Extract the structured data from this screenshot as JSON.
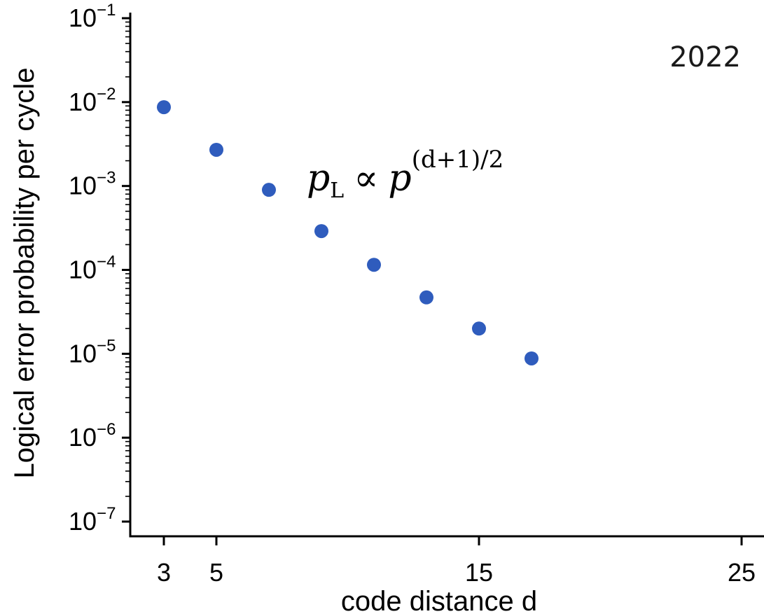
{
  "chart_data": {
    "type": "scatter",
    "title": "",
    "xlabel": "code distance d",
    "ylabel": "Logical error probability per cycle",
    "x_ticks": [
      "3",
      "5",
      "15",
      "25"
    ],
    "x_tick_values": [
      3,
      5,
      15,
      25
    ],
    "xlim": [
      2,
      26
    ],
    "y_scale": "log",
    "ylim": [
      1e-07,
      0.1
    ],
    "y_ticks": [
      {
        "value": 0.1,
        "base": "10",
        "exp": "−1"
      },
      {
        "value": 0.01,
        "base": "10",
        "exp": "−2"
      },
      {
        "value": 0.001,
        "base": "10",
        "exp": "−3"
      },
      {
        "value": 0.0001,
        "base": "10",
        "exp": "−4"
      },
      {
        "value": 1e-05,
        "base": "10",
        "exp": "−5"
      },
      {
        "value": 1e-06,
        "base": "10",
        "exp": "−6"
      },
      {
        "value": 1e-07,
        "base": "10",
        "exp": "−7"
      }
    ],
    "series": [
      {
        "color": "#2f5cbd",
        "x": [
          3,
          5,
          7,
          9,
          11,
          13,
          15,
          17
        ],
        "y": [
          0.0087,
          0.0027,
          0.0009,
          0.00029,
          0.000115,
          4.7e-05,
          2e-05,
          8.8e-06
        ]
      }
    ],
    "annotations": {
      "year": "2022",
      "formula": {
        "p": "p",
        "p_sub": "L",
        "propto": "∝",
        "base": "p",
        "exponent": "(d+1)/2"
      }
    },
    "grid": false,
    "legend": "none"
  }
}
